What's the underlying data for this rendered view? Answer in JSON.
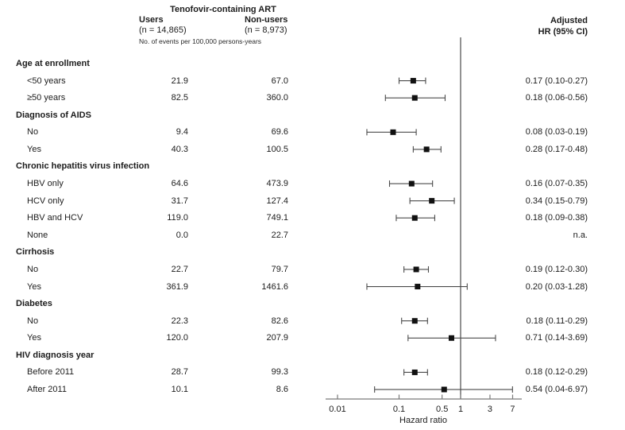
{
  "header": {
    "group_title": "Tenofovir-containing ART",
    "users_label": "Users",
    "users_n": "(n = 14,865)",
    "nonusers_label": "Non-users",
    "nonusers_n": "(n = 8,973)",
    "events_note": "No. of events per 100,000 persons-years",
    "hr_label_line1": "Adjusted",
    "hr_label_line2": "HR (95% CI)"
  },
  "colors": {
    "marker": "#111111",
    "ci_line": "#4a4a4a",
    "reference_line": "#4a4a4a",
    "axis": "#7a7a7a",
    "text": "#1c1c1c"
  },
  "chart_data": {
    "type": "forest",
    "xlabel": "Hazard ratio",
    "x_scale": "log",
    "x_ticks": [
      "0.01",
      "0.1",
      "0.5",
      "1",
      "3",
      "7"
    ],
    "x_tick_values": [
      0.01,
      0.1,
      0.5,
      1,
      3,
      7
    ],
    "reference_line": 1,
    "axis_range": [
      0.0065,
      9.8
    ],
    "legend_position": "none",
    "grid": false,
    "rows": [
      {
        "type": "section",
        "label": "Age at enrollment"
      },
      {
        "type": "item",
        "label": "<50 years",
        "users": "21.9",
        "nonusers": "67.0",
        "hr_text": "0.17 (0.10-0.27)",
        "est": 0.17,
        "lo": 0.1,
        "hi": 0.27
      },
      {
        "type": "item",
        "label": "≥50 years",
        "users": "82.5",
        "nonusers": "360.0",
        "hr_text": "0.18 (0.06-0.56)",
        "est": 0.18,
        "lo": 0.06,
        "hi": 0.56
      },
      {
        "type": "section",
        "label": "Diagnosis of AIDS"
      },
      {
        "type": "item",
        "label": "No",
        "users": "9.4",
        "nonusers": "69.6",
        "hr_text": "0.08 (0.03-0.19)",
        "est": 0.08,
        "lo": 0.03,
        "hi": 0.19
      },
      {
        "type": "item",
        "label": "Yes",
        "users": "40.3",
        "nonusers": "100.5",
        "hr_text": "0.28 (0.17-0.48)",
        "est": 0.28,
        "lo": 0.17,
        "hi": 0.48
      },
      {
        "type": "section",
        "label": "Chronic hepatitis virus infection"
      },
      {
        "type": "item",
        "label": "HBV only",
        "users": "64.6",
        "nonusers": "473.9",
        "hr_text": "0.16 (0.07-0.35)",
        "est": 0.16,
        "lo": 0.07,
        "hi": 0.35
      },
      {
        "type": "item",
        "label": "HCV only",
        "users": "31.7",
        "nonusers": "127.4",
        "hr_text": "0.34 (0.15-0.79)",
        "est": 0.34,
        "lo": 0.15,
        "hi": 0.79
      },
      {
        "type": "item",
        "label": "HBV and HCV",
        "users": "119.0",
        "nonusers": "749.1",
        "hr_text": "0.18 (0.09-0.38)",
        "est": 0.18,
        "lo": 0.09,
        "hi": 0.38
      },
      {
        "type": "item",
        "label": "None",
        "users": "0.0",
        "nonusers": "22.7",
        "hr_text": "n.a.",
        "est": null,
        "lo": null,
        "hi": null
      },
      {
        "type": "section",
        "label": "Cirrhosis"
      },
      {
        "type": "item",
        "label": "No",
        "users": "22.7",
        "nonusers": "79.7",
        "hr_text": "0.19 (0.12-0.30)",
        "est": 0.19,
        "lo": 0.12,
        "hi": 0.3
      },
      {
        "type": "item",
        "label": "Yes",
        "users": "361.9",
        "nonusers": "1461.6",
        "hr_text": "0.20 (0.03-1.28)",
        "est": 0.2,
        "lo": 0.03,
        "hi": 1.28
      },
      {
        "type": "section",
        "label": "Diabetes"
      },
      {
        "type": "item",
        "label": "No",
        "users": "22.3",
        "nonusers": "82.6",
        "hr_text": "0.18 (0.11-0.29)",
        "est": 0.18,
        "lo": 0.11,
        "hi": 0.29
      },
      {
        "type": "item",
        "label": "Yes",
        "users": "120.0",
        "nonusers": "207.9",
        "hr_text": "0.71 (0.14-3.69)",
        "est": 0.71,
        "lo": 0.14,
        "hi": 3.69
      },
      {
        "type": "section",
        "label": "HIV diagnosis year"
      },
      {
        "type": "item",
        "label": "Before 2011",
        "users": "28.7",
        "nonusers": "99.3",
        "hr_text": "0.18 (0.12-0.29)",
        "est": 0.18,
        "lo": 0.12,
        "hi": 0.29
      },
      {
        "type": "item",
        "label": "After 2011",
        "users": "10.1",
        "nonusers": "8.6",
        "hr_text": "0.54 (0.04-6.97)",
        "est": 0.54,
        "lo": 0.04,
        "hi": 6.97
      }
    ]
  }
}
